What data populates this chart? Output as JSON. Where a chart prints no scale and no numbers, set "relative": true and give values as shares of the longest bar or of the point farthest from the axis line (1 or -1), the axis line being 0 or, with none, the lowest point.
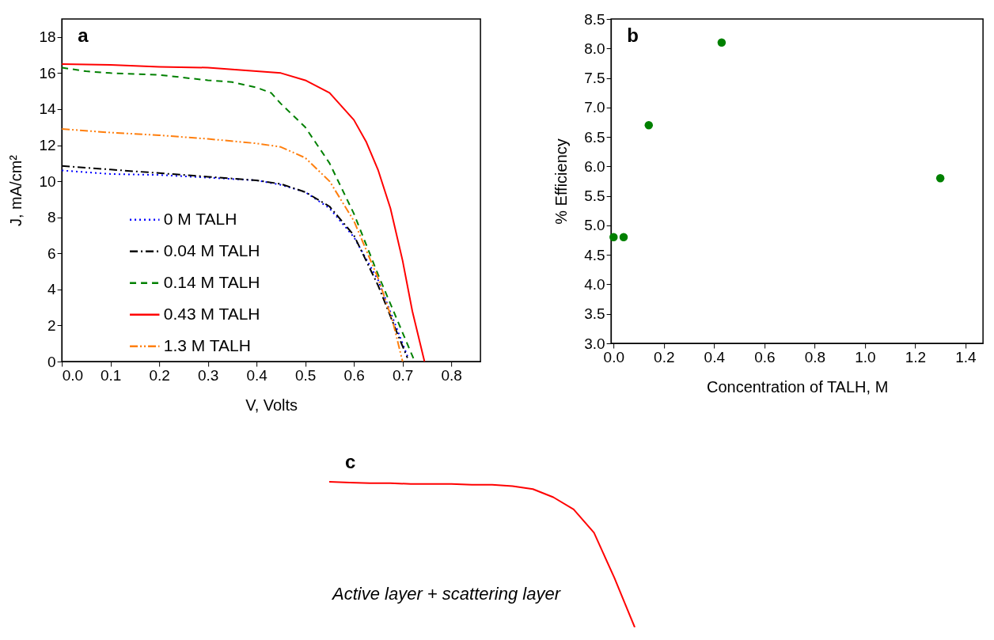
{
  "chart_data": [
    {
      "type": "line",
      "xlabel": "V, Volts",
      "ylabel": "J, mA/cm²",
      "annotations": [
        "a"
      ],
      "xlim": [
        0,
        0.86
      ],
      "ylim": [
        0,
        19
      ],
      "xticks": [
        {
          "value": 0,
          "label": "0.0"
        },
        {
          "value": 0.1,
          "label": "0.1"
        },
        {
          "value": 0.2,
          "label": "0.2"
        },
        {
          "value": 0.3,
          "label": "0.3"
        },
        {
          "value": 0.4,
          "label": "0.4"
        },
        {
          "value": 0.5,
          "label": "0.5"
        },
        {
          "value": 0.6,
          "label": "0.6"
        },
        {
          "value": 0.7,
          "label": "0.7"
        },
        {
          "value": 0.8,
          "label": "0.8"
        }
      ],
      "yticks": [
        0,
        2,
        4,
        6,
        8,
        10,
        12,
        14,
        16,
        18
      ],
      "grid": false,
      "legend": "bottom left",
      "series": [
        {
          "name": "0 M TALH",
          "color": "#0000ff",
          "line_style": "dotted",
          "x": [
            0,
            0.1,
            0.2,
            0.3,
            0.4,
            0.45,
            0.5,
            0.55,
            0.6,
            0.65,
            0.69,
            0.71
          ],
          "values": [
            10.6,
            10.4,
            10.35,
            10.2,
            10.05,
            9.8,
            9.4,
            8.5,
            6.9,
            4.5,
            1.7,
            0.3
          ]
        },
        {
          "name": "0.04 M TALH",
          "color": "#000000",
          "line_style": "dashdot",
          "x": [
            0,
            0.1,
            0.2,
            0.3,
            0.4,
            0.45,
            0.5,
            0.55,
            0.6,
            0.65,
            0.69,
            0.71
          ],
          "values": [
            10.85,
            10.65,
            10.45,
            10.25,
            10.05,
            9.85,
            9.4,
            8.6,
            7.0,
            4.2,
            1.5,
            0.2
          ]
        },
        {
          "name": "0.14 M TALH",
          "color": "#008000",
          "line_style": "dashed",
          "x": [
            0,
            0.05,
            0.1,
            0.2,
            0.3,
            0.35,
            0.4,
            0.43,
            0.45,
            0.5,
            0.55,
            0.6,
            0.65,
            0.7,
            0.725
          ],
          "values": [
            16.3,
            16.1,
            16.0,
            15.9,
            15.6,
            15.5,
            15.2,
            14.9,
            14.3,
            13.0,
            11.0,
            8.2,
            4.8,
            1.6,
            0
          ]
        },
        {
          "name": "0.43 M TALH",
          "color": "#ff0000",
          "line_style": "solid",
          "x": [
            0,
            0.1,
            0.2,
            0.3,
            0.4,
            0.45,
            0.5,
            0.55,
            0.6,
            0.625,
            0.65,
            0.675,
            0.7,
            0.72,
            0.745
          ],
          "values": [
            16.5,
            16.45,
            16.35,
            16.3,
            16.1,
            16.0,
            15.6,
            14.9,
            13.4,
            12.2,
            10.6,
            8.5,
            5.6,
            2.8,
            0
          ]
        },
        {
          "name": "1.3 M TALH",
          "color": "#ff7f0e",
          "line_style": "dashdotdot",
          "x": [
            0,
            0.1,
            0.2,
            0.3,
            0.4,
            0.45,
            0.5,
            0.55,
            0.6,
            0.65,
            0.68,
            0.7
          ],
          "values": [
            12.9,
            12.7,
            12.55,
            12.35,
            12.1,
            11.9,
            11.3,
            10.0,
            7.8,
            4.6,
            2.2,
            0
          ]
        }
      ]
    },
    {
      "type": "scatter",
      "xlabel": "Concentration of TALH, M",
      "ylabel": "% Efficiency",
      "annotations": [
        "b"
      ],
      "xlim": [
        -0.01,
        1.47
      ],
      "ylim": [
        3,
        8.5
      ],
      "xticks": [
        {
          "value": 0,
          "label": "0.0"
        },
        {
          "value": 0.2,
          "label": "0.2"
        },
        {
          "value": 0.4,
          "label": "0.4"
        },
        {
          "value": 0.6,
          "label": "0.6"
        },
        {
          "value": 0.8,
          "label": "0.8"
        },
        {
          "value": 1,
          "label": "1.0"
        },
        {
          "value": 1.2,
          "label": "1.2"
        },
        {
          "value": 1.4,
          "label": "1.4"
        }
      ],
      "yticks": [
        {
          "value": 3,
          "label": "3.0"
        },
        3.5,
        {
          "value": 4,
          "label": "4.0"
        },
        4.5,
        {
          "value": 5,
          "label": "5.0"
        },
        5.5,
        {
          "value": 6,
          "label": "6.0"
        },
        6.5,
        {
          "value": 7,
          "label": "7.0"
        },
        7.5,
        {
          "value": 8,
          "label": "8.0"
        },
        8.5
      ],
      "grid": false,
      "marker": "circle",
      "series": [
        {
          "color": "#008000",
          "x": [
            0,
            0.04,
            0.14,
            0.43,
            1.3
          ],
          "values": [
            4.8,
            4.8,
            6.7,
            8.1,
            5.8
          ]
        }
      ]
    },
    {
      "type": "line",
      "relative": true,
      "annotations": [
        "c",
        "Active layer + scattering layer"
      ],
      "categories": [
        null,
        null,
        null,
        null,
        null,
        null,
        null,
        null,
        null,
        null,
        null,
        null,
        null,
        null,
        null,
        null,
        null,
        null,
        null,
        null
      ],
      "series": [
        {
          "color": "#ff0000",
          "values": [
            1.0,
            0.995,
            0.99,
            0.99,
            0.985,
            0.985,
            0.985,
            0.98,
            0.98,
            0.97,
            0.95,
            0.894,
            0.81,
            0.65,
            0.34,
            0,
            null,
            null,
            null,
            null
          ]
        }
      ]
    }
  ]
}
